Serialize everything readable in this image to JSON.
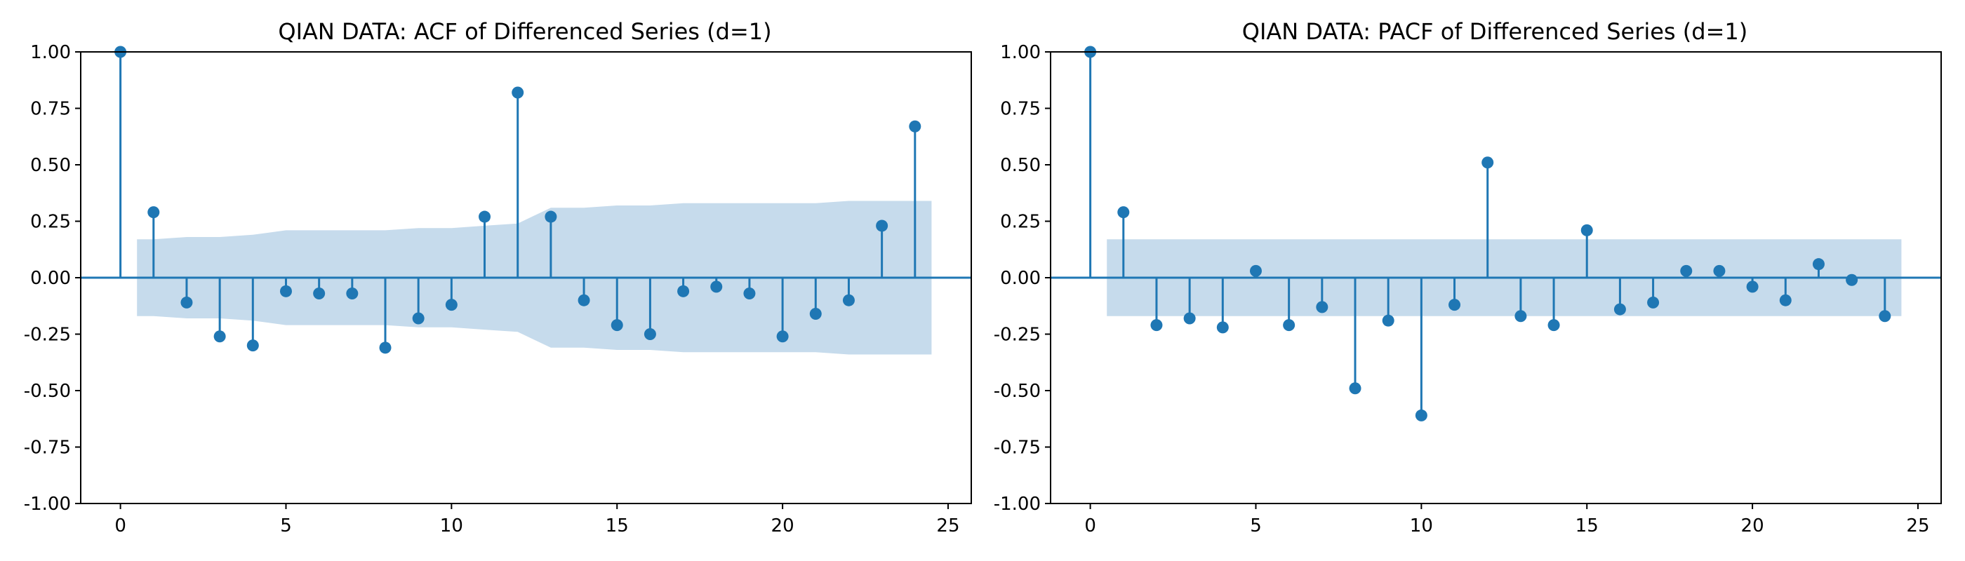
{
  "figure": {
    "background": "#ffffff"
  },
  "chart_data": [
    {
      "type": "stem",
      "title": "QIAN DATA: ACF of Differenced Series (d=1)",
      "xlabel": "",
      "ylabel": "",
      "xlim": [
        -1.2,
        25.7
      ],
      "ylim": [
        -1.0,
        1.0
      ],
      "xticks": [
        0,
        5,
        10,
        15,
        20,
        25
      ],
      "yticks": [
        1.0,
        0.75,
        0.5,
        0.25,
        0.0,
        -0.25,
        -0.5,
        -0.75,
        -1.0
      ],
      "ytick_labels": [
        "1.00",
        "0.75",
        "0.50",
        "0.25",
        "0.00",
        "-0.25",
        "-0.50",
        "-0.75",
        "-1.00"
      ],
      "grid": false,
      "color": "#1f77b4",
      "band_color": "#c6dbec",
      "lags": [
        0,
        1,
        2,
        3,
        4,
        5,
        6,
        7,
        8,
        9,
        10,
        11,
        12,
        13,
        14,
        15,
        16,
        17,
        18,
        19,
        20,
        21,
        22,
        23,
        24
      ],
      "values": [
        1.0,
        0.29,
        -0.11,
        -0.26,
        -0.3,
        -0.06,
        -0.07,
        -0.07,
        -0.31,
        -0.18,
        -0.12,
        0.27,
        0.82,
        0.27,
        -0.1,
        -0.21,
        -0.25,
        -0.06,
        -0.04,
        -0.07,
        -0.26,
        -0.16,
        -0.1,
        0.23,
        0.67
      ],
      "confidence_band": {
        "x": [
          0.5,
          1,
          2,
          3,
          4,
          5,
          6,
          7,
          8,
          9,
          10,
          11,
          12,
          13,
          14,
          15,
          16,
          17,
          18,
          19,
          20,
          21,
          22,
          23,
          24,
          24.5
        ],
        "upper": [
          0.17,
          0.17,
          0.18,
          0.18,
          0.19,
          0.21,
          0.21,
          0.21,
          0.21,
          0.22,
          0.22,
          0.23,
          0.24,
          0.31,
          0.31,
          0.32,
          0.32,
          0.33,
          0.33,
          0.33,
          0.33,
          0.33,
          0.34,
          0.34,
          0.34,
          0.34
        ]
      }
    },
    {
      "type": "stem",
      "title": "QIAN DATA: PACF of Differenced Series (d=1)",
      "xlabel": "",
      "ylabel": "",
      "xlim": [
        -1.2,
        25.7
      ],
      "ylim": [
        -1.0,
        1.0
      ],
      "xticks": [
        0,
        5,
        10,
        15,
        20,
        25
      ],
      "yticks": [
        1.0,
        0.75,
        0.5,
        0.25,
        0.0,
        -0.25,
        -0.5,
        -0.75,
        -1.0
      ],
      "ytick_labels": [
        "1.00",
        "0.75",
        "0.50",
        "0.25",
        "0.00",
        "-0.25",
        "-0.50",
        "-0.75",
        "-1.00"
      ],
      "grid": false,
      "color": "#1f77b4",
      "band_color": "#c6dbec",
      "lags": [
        0,
        1,
        2,
        3,
        4,
        5,
        6,
        7,
        8,
        9,
        10,
        11,
        12,
        13,
        14,
        15,
        16,
        17,
        18,
        19,
        20,
        21,
        22,
        23,
        24
      ],
      "values": [
        1.0,
        0.29,
        -0.21,
        -0.18,
        -0.22,
        0.03,
        -0.21,
        -0.13,
        -0.49,
        -0.19,
        -0.61,
        -0.12,
        0.51,
        -0.17,
        -0.21,
        0.21,
        -0.14,
        -0.11,
        0.03,
        0.03,
        -0.04,
        -0.1,
        0.06,
        -0.01,
        -0.17
      ],
      "confidence_band": {
        "x": [
          0.5,
          24.5
        ],
        "upper": [
          0.17,
          0.17
        ]
      }
    }
  ]
}
